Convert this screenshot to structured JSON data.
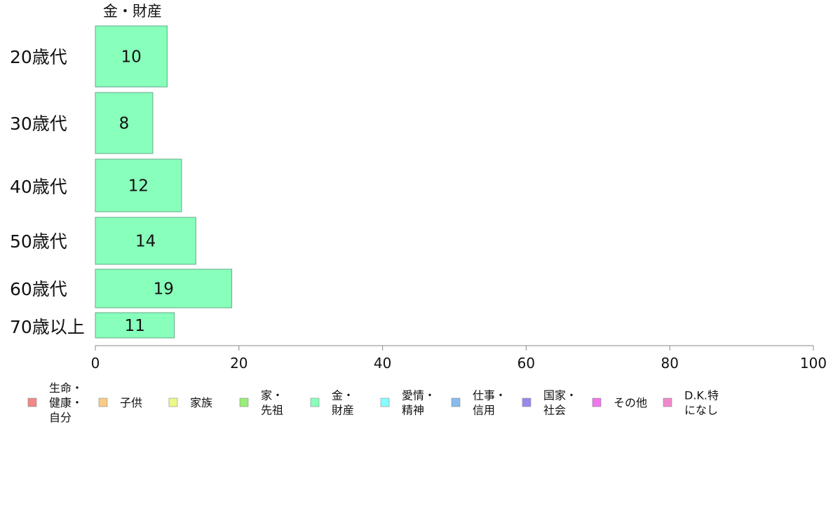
{
  "chart_data": {
    "type": "bar",
    "orientation": "horizontal",
    "series_title": "金・財産",
    "categories": [
      "20歳代",
      "30歳代",
      "40歳代",
      "50歳代",
      "60歳代",
      "70歳以上"
    ],
    "values": [
      10,
      8,
      12,
      14,
      19,
      11
    ],
    "xlim": [
      0,
      100
    ],
    "xticks": [
      "0",
      "20",
      "40",
      "60",
      "80",
      "100"
    ],
    "grid": false,
    "legend_position": "bottom",
    "bar_color": "#88ffbb",
    "legend": [
      {
        "label": "生命・\n健康・\n自分",
        "color": "#f08888"
      },
      {
        "label": "子供",
        "color": "#f8cc88"
      },
      {
        "label": "家族",
        "color": "#eef888"
      },
      {
        "label": "家・\n先祖",
        "color": "#99ee77"
      },
      {
        "label": "金・\n財産",
        "color": "#88ffbb"
      },
      {
        "label": "愛情・\n精神",
        "color": "#88ffff"
      },
      {
        "label": "仕事・\n信用",
        "color": "#88bbee"
      },
      {
        "label": "国家・\n社会",
        "color": "#9988ee"
      },
      {
        "label": "その他",
        "color": "#ee77ee"
      },
      {
        "label": "D.K.特\nになし",
        "color": "#f088cc"
      }
    ]
  }
}
